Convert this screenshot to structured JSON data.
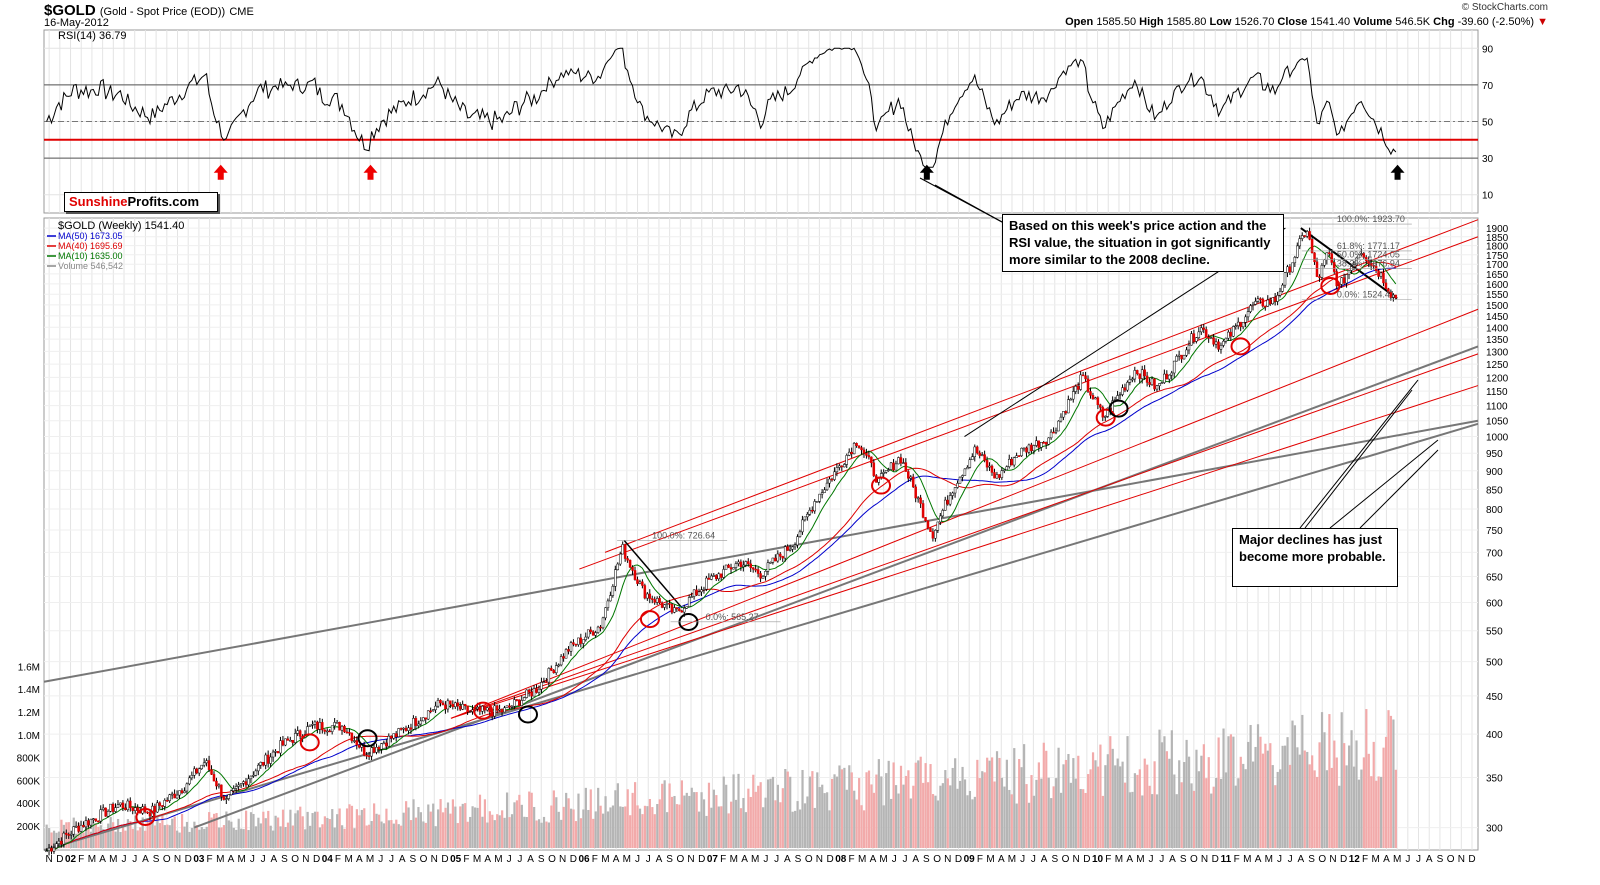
{
  "header": {
    "symbol": "$GOLD",
    "description": "(Gold - Spot Price (EOD))",
    "exchange": "CME",
    "date": "16-May-2012",
    "brand": "© StockCharts.com",
    "open_label": "Open",
    "open": "1585.50",
    "high_label": "High",
    "high": "1585.80",
    "low_label": "Low",
    "low": "1526.70",
    "close_label": "Close",
    "close": "1541.40",
    "volume_label": "Volume",
    "volume": "546.5K",
    "chg_label": "Chg",
    "chg": "-39.60 (-2.50%)",
    "down_color": "#cc0000"
  },
  "logo": {
    "part1": "Sunshine",
    "part2": "Profits.com"
  },
  "annotations": {
    "note1": "Based on this week's price action and the RSI value, the situation in got significantly more similar to the 2008 decline.",
    "note2": "Major declines has just become more probable."
  },
  "chart_data": [
    {
      "type": "line",
      "title": "RSI(14) 36.79",
      "ylim": [
        0,
        100
      ],
      "y_ticks": [
        10,
        30,
        50,
        70,
        90
      ],
      "levels": [
        30,
        40,
        70
      ],
      "x_range": [
        "2001-11",
        "2012-05"
      ],
      "series": [
        {
          "name": "RSI(14)",
          "last": 36.79
        }
      ],
      "markers": [
        {
          "date": "2003-03",
          "direction": "up",
          "color": "#ee0000"
        },
        {
          "date": "2004-05",
          "direction": "up",
          "color": "#ee0000"
        },
        {
          "date": "2008-09",
          "direction": "up",
          "color": "#000000"
        },
        {
          "date": "2012-05",
          "direction": "up",
          "color": "#000000"
        }
      ]
    },
    {
      "type": "line",
      "title": "$GOLD (Weekly) 1541.40",
      "scale": "log",
      "ylim": [
        280,
        1960
      ],
      "y_ticks": [
        300,
        350,
        400,
        450,
        500,
        550,
        600,
        650,
        700,
        750,
        800,
        850,
        900,
        950,
        1000,
        1050,
        1100,
        1150,
        1200,
        1250,
        1300,
        1350,
        1400,
        1450,
        1500,
        1550,
        1600,
        1650,
        1700,
        1750,
        1800,
        1850,
        1900
      ],
      "volume_ticks": [
        "200K",
        "400K",
        "600K",
        "800K",
        "1.0M",
        "1.2M",
        "1.4M",
        "1.6M"
      ],
      "legend": [
        {
          "label": "MA(50) 1673.05",
          "color": "#0000cc"
        },
        {
          "label": "MA(40) 1695.69",
          "color": "#dd0000"
        },
        {
          "label": "MA(10) 1635.00",
          "color": "#007700"
        },
        {
          "label": "Volume 546,542",
          "color": "#888888"
        }
      ],
      "x_labels": [
        {
          "t": "N",
          "b": false
        },
        {
          "t": "D",
          "b": false
        },
        {
          "t": "02",
          "b": true
        },
        {
          "t": "F",
          "b": false
        },
        {
          "t": "M",
          "b": false
        },
        {
          "t": "A",
          "b": false
        },
        {
          "t": "M",
          "b": false
        },
        {
          "t": "J",
          "b": false
        },
        {
          "t": "J",
          "b": false
        },
        {
          "t": "A",
          "b": false
        },
        {
          "t": "S",
          "b": false
        },
        {
          "t": "O",
          "b": false
        },
        {
          "t": "N",
          "b": false
        },
        {
          "t": "D",
          "b": false
        },
        {
          "t": "03",
          "b": true
        },
        {
          "t": "F",
          "b": false
        },
        {
          "t": "M",
          "b": false
        },
        {
          "t": "A",
          "b": false
        },
        {
          "t": "M",
          "b": false
        },
        {
          "t": "J",
          "b": false
        },
        {
          "t": "J",
          "b": false
        },
        {
          "t": "A",
          "b": false
        },
        {
          "t": "S",
          "b": false
        },
        {
          "t": "O",
          "b": false
        },
        {
          "t": "N",
          "b": false
        },
        {
          "t": "D",
          "b": false
        },
        {
          "t": "04",
          "b": true
        },
        {
          "t": "F",
          "b": false
        },
        {
          "t": "M",
          "b": false
        },
        {
          "t": "A",
          "b": false
        },
        {
          "t": "M",
          "b": false
        },
        {
          "t": "J",
          "b": false
        },
        {
          "t": "J",
          "b": false
        },
        {
          "t": "A",
          "b": false
        },
        {
          "t": "S",
          "b": false
        },
        {
          "t": "O",
          "b": false
        },
        {
          "t": "N",
          "b": false
        },
        {
          "t": "D",
          "b": false
        },
        {
          "t": "05",
          "b": true
        },
        {
          "t": "F",
          "b": false
        },
        {
          "t": "M",
          "b": false
        },
        {
          "t": "A",
          "b": false
        },
        {
          "t": "M",
          "b": false
        },
        {
          "t": "J",
          "b": false
        },
        {
          "t": "J",
          "b": false
        },
        {
          "t": "A",
          "b": false
        },
        {
          "t": "S",
          "b": false
        },
        {
          "t": "O",
          "b": false
        },
        {
          "t": "N",
          "b": false
        },
        {
          "t": "D",
          "b": false
        },
        {
          "t": "06",
          "b": true
        },
        {
          "t": "F",
          "b": false
        },
        {
          "t": "M",
          "b": false
        },
        {
          "t": "A",
          "b": false
        },
        {
          "t": "M",
          "b": false
        },
        {
          "t": "J",
          "b": false
        },
        {
          "t": "J",
          "b": false
        },
        {
          "t": "A",
          "b": false
        },
        {
          "t": "S",
          "b": false
        },
        {
          "t": "O",
          "b": false
        },
        {
          "t": "N",
          "b": false
        },
        {
          "t": "D",
          "b": false
        },
        {
          "t": "07",
          "b": true
        },
        {
          "t": "F",
          "b": false
        },
        {
          "t": "M",
          "b": false
        },
        {
          "t": "A",
          "b": false
        },
        {
          "t": "M",
          "b": false
        },
        {
          "t": "J",
          "b": false
        },
        {
          "t": "J",
          "b": false
        },
        {
          "t": "A",
          "b": false
        },
        {
          "t": "S",
          "b": false
        },
        {
          "t": "O",
          "b": false
        },
        {
          "t": "N",
          "b": false
        },
        {
          "t": "D",
          "b": false
        },
        {
          "t": "08",
          "b": true
        },
        {
          "t": "F",
          "b": false
        },
        {
          "t": "M",
          "b": false
        },
        {
          "t": "A",
          "b": false
        },
        {
          "t": "M",
          "b": false
        },
        {
          "t": "J",
          "b": false
        },
        {
          "t": "J",
          "b": false
        },
        {
          "t": "A",
          "b": false
        },
        {
          "t": "S",
          "b": false
        },
        {
          "t": "O",
          "b": false
        },
        {
          "t": "N",
          "b": false
        },
        {
          "t": "D",
          "b": false
        },
        {
          "t": "09",
          "b": true
        },
        {
          "t": "F",
          "b": false
        },
        {
          "t": "M",
          "b": false
        },
        {
          "t": "A",
          "b": false
        },
        {
          "t": "M",
          "b": false
        },
        {
          "t": "J",
          "b": false
        },
        {
          "t": "J",
          "b": false
        },
        {
          "t": "A",
          "b": false
        },
        {
          "t": "S",
          "b": false
        },
        {
          "t": "O",
          "b": false
        },
        {
          "t": "N",
          "b": false
        },
        {
          "t": "D",
          "b": false
        },
        {
          "t": "10",
          "b": true
        },
        {
          "t": "F",
          "b": false
        },
        {
          "t": "M",
          "b": false
        },
        {
          "t": "A",
          "b": false
        },
        {
          "t": "M",
          "b": false
        },
        {
          "t": "J",
          "b": false
        },
        {
          "t": "J",
          "b": false
        },
        {
          "t": "A",
          "b": false
        },
        {
          "t": "S",
          "b": false
        },
        {
          "t": "O",
          "b": false
        },
        {
          "t": "N",
          "b": false
        },
        {
          "t": "D",
          "b": false
        },
        {
          "t": "11",
          "b": true
        },
        {
          "t": "F",
          "b": false
        },
        {
          "t": "M",
          "b": false
        },
        {
          "t": "A",
          "b": false
        },
        {
          "t": "M",
          "b": false
        },
        {
          "t": "J",
          "b": false
        },
        {
          "t": "J",
          "b": false
        },
        {
          "t": "A",
          "b": false
        },
        {
          "t": "S",
          "b": false
        },
        {
          "t": "O",
          "b": false
        },
        {
          "t": "N",
          "b": false
        },
        {
          "t": "D",
          "b": false
        },
        {
          "t": "12",
          "b": true
        },
        {
          "t": "F",
          "b": false
        },
        {
          "t": "M",
          "b": false
        },
        {
          "t": "A",
          "b": false
        },
        {
          "t": "M",
          "b": false
        },
        {
          "t": "J",
          "b": false
        },
        {
          "t": "J",
          "b": false
        },
        {
          "t": "A",
          "b": false
        },
        {
          "t": "S",
          "b": false
        },
        {
          "t": "O",
          "b": false
        },
        {
          "t": "N",
          "b": false
        },
        {
          "t": "D",
          "b": false
        }
      ],
      "price_path": [
        [
          "2001-11",
          278
        ],
        [
          "2002-02",
          300
        ],
        [
          "2002-06",
          322
        ],
        [
          "2002-09",
          315
        ],
        [
          "2002-12",
          340
        ],
        [
          "2003-02",
          368
        ],
        [
          "2003-04",
          325
        ],
        [
          "2003-06",
          350
        ],
        [
          "2003-09",
          385
        ],
        [
          "2003-12",
          410
        ],
        [
          "2004-03",
          410
        ],
        [
          "2004-05",
          378
        ],
        [
          "2004-08",
          400
        ],
        [
          "2004-12",
          440
        ],
        [
          "2005-03",
          428
        ],
        [
          "2005-06",
          430
        ],
        [
          "2005-09",
          460
        ],
        [
          "2005-12",
          520
        ],
        [
          "2006-03",
          560
        ],
        [
          "2006-05",
          710
        ],
        [
          "2006-07",
          620
        ],
        [
          "2006-10",
          580
        ],
        [
          "2007-01",
          640
        ],
        [
          "2007-04",
          680
        ],
        [
          "2007-06",
          655
        ],
        [
          "2007-09",
          720
        ],
        [
          "2007-11",
          820
        ],
        [
          "2008-03",
          990
        ],
        [
          "2008-05",
          870
        ],
        [
          "2008-07",
          940
        ],
        [
          "2008-10",
          740
        ],
        [
          "2008-12",
          860
        ],
        [
          "2009-02",
          960
        ],
        [
          "2009-04",
          880
        ],
        [
          "2009-06",
          950
        ],
        [
          "2009-09",
          1000
        ],
        [
          "2009-12",
          1200
        ],
        [
          "2010-02",
          1060
        ],
        [
          "2010-05",
          1230
        ],
        [
          "2010-07",
          1160
        ],
        [
          "2010-11",
          1400
        ],
        [
          "2011-01",
          1320
        ],
        [
          "2011-04",
          1500
        ],
        [
          "2011-06",
          1520
        ],
        [
          "2011-09",
          1900
        ],
        [
          "2011-10",
          1620
        ],
        [
          "2011-11",
          1760
        ],
        [
          "2011-12",
          1580
        ],
        [
          "2012-02",
          1780
        ],
        [
          "2012-04",
          1640
        ],
        [
          "2012-05",
          1541.4
        ]
      ],
      "fib_labels": [
        {
          "text": "100.0%: 726.64",
          "value": 726.64,
          "date": "2006-05"
        },
        {
          "text": "0.0%: 565.27",
          "value": 565.27,
          "date": "2006-10"
        },
        {
          "text": "100.0%: 1923.70",
          "value": 1923.7,
          "date": "2011-09"
        },
        {
          "text": "61.8%: 1771.17",
          "value": 1771.17,
          "date": "2011-09"
        },
        {
          "text": "50.0%: 1724.05",
          "value": 1724.05,
          "date": "2011-09"
        },
        {
          "text": "38.2%: 1676.94",
          "value": 1676.94,
          "date": "2011-09"
        },
        {
          "text": "0.0%: 1524.41",
          "value": 1524.41,
          "date": "2011-09"
        }
      ]
    }
  ]
}
